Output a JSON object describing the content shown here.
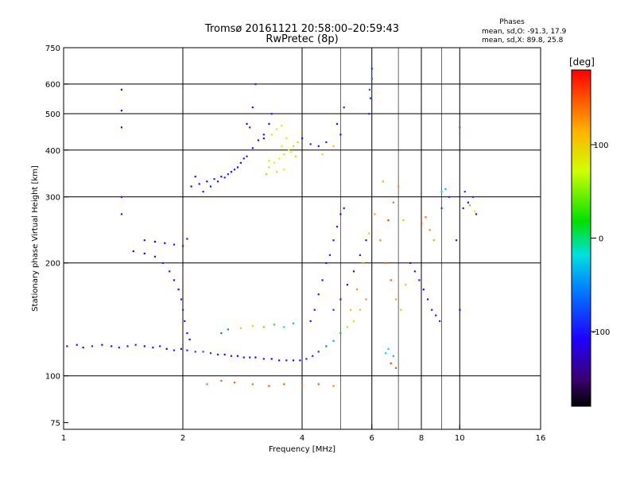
{
  "chart_data": {
    "type": "scatter",
    "title": "Tromsø 20161121 20:58:00–20:59:43",
    "subtitle": "RwPretec (8p)",
    "xlabel": "Frequency [MHz]",
    "ylabel": "Stationary phase Virtual Height [km]",
    "x_scale": "log",
    "y_scale": "log",
    "xlim": [
      1,
      16
    ],
    "ylim": [
      72,
      750
    ],
    "x_ticks": [
      1,
      2,
      4,
      6,
      8,
      10,
      16
    ],
    "x_tick_labels": [
      "1",
      "2",
      "4",
      "6",
      "8",
      "10",
      "16"
    ],
    "x_grid_minor": [
      5,
      7,
      9
    ],
    "y_ticks": [
      75,
      100,
      200,
      300,
      400,
      500,
      600,
      750
    ],
    "y_tick_labels": [
      "75",
      "100",
      "200",
      "300",
      "400",
      "500",
      "600",
      "750"
    ],
    "y_grid": [
      100,
      200,
      300,
      400,
      500,
      600
    ],
    "grid": true,
    "color_mode": "phase",
    "phase_box": {
      "title": "Phases",
      "line_o": "mean, sd,O: -91.3, 17.9",
      "line_x": "mean, sd,X:  89.8, 25.8"
    },
    "colorbar": {
      "label": "[deg]",
      "min": -180,
      "max": 180,
      "ticks": [
        100,
        0,
        -100
      ],
      "tick_labels": [
        "100",
        "0",
        "-100"
      ]
    },
    "series": [
      {
        "type": "scatter",
        "points": [
          [
            1.02,
            120,
            -100
          ],
          [
            1.08,
            121,
            -95
          ],
          [
            1.12,
            119,
            -110
          ],
          [
            1.18,
            120,
            -90
          ],
          [
            1.25,
            121,
            -100
          ],
          [
            1.32,
            120,
            -105
          ],
          [
            1.38,
            119,
            -95
          ],
          [
            1.45,
            120,
            -100
          ],
          [
            1.52,
            121,
            -90
          ],
          [
            1.6,
            120,
            -110
          ],
          [
            1.68,
            119,
            -100
          ],
          [
            1.75,
            120,
            -95
          ],
          [
            1.82,
            118,
            -105
          ],
          [
            1.9,
            117,
            -90
          ],
          [
            1.98,
            118,
            -100
          ],
          [
            2.05,
            117,
            -95
          ],
          [
            2.15,
            116,
            -80
          ],
          [
            2.25,
            116,
            -75
          ],
          [
            2.35,
            115,
            -85
          ],
          [
            2.45,
            114,
            -90
          ],
          [
            2.55,
            114,
            -100
          ],
          [
            2.65,
            113,
            -95
          ],
          [
            2.75,
            113,
            -105
          ],
          [
            2.85,
            112,
            -100
          ],
          [
            2.95,
            112,
            -90
          ],
          [
            3.05,
            112,
            -110
          ],
          [
            3.2,
            111,
            -100
          ],
          [
            3.35,
            111,
            -105
          ],
          [
            3.5,
            110,
            -100
          ],
          [
            3.65,
            110,
            -95
          ],
          [
            3.8,
            110,
            -105
          ],
          [
            3.95,
            110,
            -100
          ],
          [
            4.1,
            111,
            -95
          ],
          [
            4.25,
            113,
            -90
          ],
          [
            4.4,
            116,
            -85
          ],
          [
            4.6,
            120,
            -60
          ],
          [
            4.8,
            124,
            -40
          ],
          [
            5.0,
            130,
            20
          ],
          [
            5.2,
            135,
            60
          ],
          [
            5.4,
            140,
            90
          ],
          [
            5.6,
            150,
            110
          ],
          [
            5.8,
            160,
            130
          ],
          [
            1.5,
            215,
            -110
          ],
          [
            1.6,
            212,
            -105
          ],
          [
            1.7,
            208,
            -100
          ],
          [
            1.78,
            200,
            -95
          ],
          [
            1.85,
            190,
            -100
          ],
          [
            1.9,
            180,
            -105
          ],
          [
            1.95,
            170,
            -100
          ],
          [
            1.98,
            160,
            -95
          ],
          [
            2.0,
            150,
            -90
          ],
          [
            2.02,
            140,
            -95
          ],
          [
            2.05,
            130,
            -100
          ],
          [
            2.08,
            125,
            -105
          ],
          [
            1.6,
            230,
            -100
          ],
          [
            1.7,
            228,
            -110
          ],
          [
            1.8,
            226,
            -105
          ],
          [
            1.9,
            224,
            -100
          ],
          [
            2.0,
            222,
            -95
          ],
          [
            2.05,
            232,
            -100
          ],
          [
            2.1,
            320,
            -110
          ],
          [
            2.2,
            325,
            -100
          ],
          [
            2.3,
            330,
            -105
          ],
          [
            2.4,
            335,
            -95
          ],
          [
            2.5,
            340,
            -100
          ],
          [
            2.6,
            345,
            -90
          ],
          [
            2.7,
            355,
            -95
          ],
          [
            2.8,
            370,
            -100
          ],
          [
            2.9,
            385,
            -95
          ],
          [
            3.0,
            405,
            -100
          ],
          [
            3.1,
            425,
            -105
          ],
          [
            3.2,
            440,
            -100
          ],
          [
            2.9,
            470,
            -110
          ],
          [
            3.0,
            520,
            -100
          ],
          [
            3.05,
            600,
            -95
          ],
          [
            2.95,
            460,
            -90
          ],
          [
            3.3,
            360,
            60
          ],
          [
            3.4,
            370,
            70
          ],
          [
            3.5,
            380,
            75
          ],
          [
            3.6,
            390,
            80
          ],
          [
            3.7,
            400,
            70
          ],
          [
            3.8,
            410,
            60
          ],
          [
            3.9,
            420,
            55
          ],
          [
            3.35,
            440,
            65
          ],
          [
            3.45,
            455,
            70
          ],
          [
            3.55,
            465,
            75
          ],
          [
            3.65,
            430,
            80
          ],
          [
            3.75,
            395,
            70
          ],
          [
            3.85,
            385,
            60
          ],
          [
            3.25,
            345,
            55
          ],
          [
            3.45,
            350,
            65
          ],
          [
            3.6,
            355,
            75
          ],
          [
            3.3,
            375,
            68
          ],
          [
            3.55,
            410,
            72
          ],
          [
            4.6,
            200,
            -100
          ],
          [
            4.7,
            210,
            -95
          ],
          [
            4.8,
            230,
            -100
          ],
          [
            4.9,
            250,
            -95
          ],
          [
            5.0,
            270,
            -100
          ],
          [
            5.1,
            280,
            -90
          ],
          [
            4.5,
            180,
            -105
          ],
          [
            4.4,
            165,
            -100
          ],
          [
            4.3,
            150,
            -95
          ],
          [
            4.2,
            140,
            -100
          ],
          [
            5.3,
            150,
            110
          ],
          [
            5.5,
            170,
            130
          ],
          [
            5.7,
            200,
            120
          ],
          [
            5.9,
            240,
            100
          ],
          [
            6.1,
            270,
            120
          ],
          [
            6.3,
            230,
            130
          ],
          [
            6.5,
            200,
            140
          ],
          [
            6.7,
            180,
            150
          ],
          [
            6.9,
            160,
            120
          ],
          [
            7.1,
            150,
            110
          ],
          [
            7.3,
            175,
            100
          ],
          [
            6.6,
            260,
            160
          ],
          [
            6.8,
            290,
            140
          ],
          [
            7.0,
            320,
            130
          ],
          [
            7.2,
            260,
            110
          ],
          [
            6.4,
            330,
            120
          ],
          [
            6.9,
            105,
            150
          ],
          [
            6.7,
            108,
            155
          ],
          [
            6.5,
            115,
            -20
          ],
          [
            6.6,
            118,
            -10
          ],
          [
            6.8,
            113,
            -30
          ],
          [
            7.5,
            200,
            -100
          ],
          [
            7.7,
            190,
            -95
          ],
          [
            7.9,
            180,
            -100
          ],
          [
            8.1,
            170,
            -105
          ],
          [
            8.3,
            160,
            -100
          ],
          [
            8.5,
            150,
            -95
          ],
          [
            8.7,
            145,
            -100
          ],
          [
            8.9,
            140,
            -90
          ],
          [
            8.0,
            255,
            150
          ],
          [
            8.2,
            265,
            140
          ],
          [
            8.4,
            245,
            130
          ],
          [
            8.6,
            230,
            120
          ],
          [
            9.0,
            310,
            -20
          ],
          [
            9.2,
            315,
            -30
          ],
          [
            9.0,
            280,
            -80
          ],
          [
            9.4,
            300,
            -90
          ],
          [
            10.2,
            280,
            -95
          ],
          [
            10.5,
            290,
            -100
          ],
          [
            10.8,
            300,
            -90
          ],
          [
            11.0,
            270,
            -100
          ],
          [
            10.3,
            310,
            -80
          ],
          [
            10.6,
            285,
            40
          ],
          [
            10.9,
            275,
            80
          ],
          [
            10.0,
            460,
            -60
          ],
          [
            9.8,
            230,
            -95
          ],
          [
            10.0,
            150,
            -100
          ],
          [
            5.9,
            500,
            -90
          ],
          [
            5.95,
            550,
            -80
          ],
          [
            6.0,
            620,
            -60
          ],
          [
            6.0,
            660,
            -85
          ],
          [
            5.92,
            580,
            -75
          ],
          [
            1.4,
            580,
            -110
          ],
          [
            1.4,
            510,
            -110
          ],
          [
            1.4,
            460,
            -100
          ],
          [
            1.4,
            300,
            -100
          ],
          [
            1.4,
            270,
            -95
          ],
          [
            2.5,
            130,
            -60
          ],
          [
            2.6,
            133,
            -50
          ],
          [
            2.8,
            134,
            100
          ],
          [
            3.0,
            136,
            90
          ],
          [
            3.2,
            135,
            40
          ],
          [
            3.4,
            137,
            30
          ],
          [
            3.6,
            135,
            -20
          ],
          [
            3.8,
            138,
            -30
          ],
          [
            2.3,
            95,
            140
          ],
          [
            2.5,
            97,
            150
          ],
          [
            2.7,
            96,
            145
          ],
          [
            3.0,
            95,
            140
          ],
          [
            3.3,
            94,
            150
          ],
          [
            3.6,
            95,
            145
          ],
          [
            4.0,
            94,
            140
          ],
          [
            4.4,
            95,
            150
          ],
          [
            4.8,
            94,
            135
          ],
          [
            4.8,
            150,
            -90
          ],
          [
            5.0,
            160,
            -95
          ],
          [
            5.2,
            175,
            -100
          ],
          [
            5.4,
            190,
            -105
          ],
          [
            5.6,
            210,
            -95
          ],
          [
            5.8,
            230,
            -100
          ],
          [
            4.5,
            390,
            90
          ],
          [
            4.8,
            410,
            100
          ],
          [
            5.0,
            440,
            -100
          ],
          [
            4.9,
            470,
            -105
          ],
          [
            5.1,
            520,
            -90
          ],
          [
            4.4,
            410,
            -100
          ],
          [
            4.6,
            420,
            -95
          ],
          [
            4.0,
            430,
            -100
          ],
          [
            4.2,
            415,
            -95
          ],
          [
            3.2,
            430,
            -100
          ],
          [
            3.3,
            470,
            -110
          ],
          [
            3.35,
            500,
            -95
          ],
          [
            2.15,
            340,
            -100
          ],
          [
            2.25,
            310,
            -95
          ],
          [
            2.35,
            320,
            -105
          ],
          [
            2.45,
            330,
            -100
          ],
          [
            2.55,
            338,
            -95
          ],
          [
            2.65,
            350,
            -100
          ],
          [
            2.75,
            360,
            -105
          ],
          [
            2.85,
            380,
            -100
          ]
        ]
      }
    ]
  }
}
